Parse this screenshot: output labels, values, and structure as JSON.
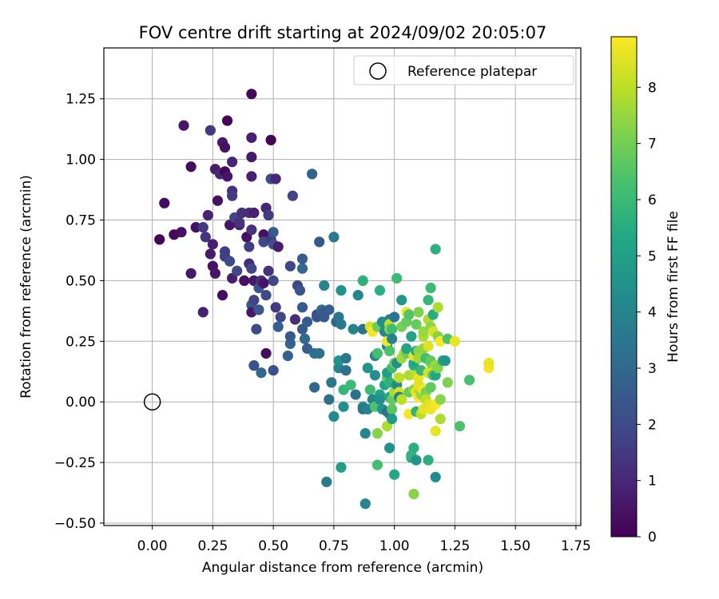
{
  "chart_data": {
    "type": "scatter",
    "title": "FOV centre drift starting at 2024/09/02 20:05:07",
    "xlabel": "Angular distance from reference (arcmin)",
    "ylabel": "Rotation from reference (arcmin)",
    "xlim": [
      -0.2,
      1.77
    ],
    "ylim": [
      -0.51,
      1.46
    ],
    "xticks": [
      0.0,
      0.25,
      0.5,
      0.75,
      1.0,
      1.25,
      1.5,
      1.75
    ],
    "xtick_labels": [
      "0.00",
      "0.25",
      "0.50",
      "0.75",
      "1.00",
      "1.25",
      "1.50",
      "1.75"
    ],
    "yticks": [
      -0.5,
      -0.25,
      0.0,
      0.25,
      0.5,
      0.75,
      1.0,
      1.25
    ],
    "ytick_labels": [
      "−0.50",
      "−0.25",
      "0.00",
      "0.25",
      "0.50",
      "0.75",
      "1.00",
      "1.25"
    ],
    "grid": true,
    "legend": {
      "position": "upper right",
      "entries": [
        "Reference platepar"
      ]
    },
    "reference_point": {
      "name": "Reference platepar",
      "x": 0.0,
      "y": 0.0
    },
    "colorbar": {
      "label": "Hours from first FF file",
      "colormap": "viridis",
      "range": [
        0,
        8.9
      ],
      "ticks": [
        0,
        1,
        2,
        3,
        4,
        5,
        6,
        7,
        8
      ]
    },
    "points": [
      [
        0.03,
        0.67,
        0.1
      ],
      [
        0.05,
        0.82,
        0.3
      ],
      [
        0.09,
        0.69,
        0.2
      ],
      [
        0.12,
        0.7,
        0.4
      ],
      [
        0.13,
        1.14,
        0.5
      ],
      [
        0.16,
        0.97,
        0.3
      ],
      [
        0.16,
        0.53,
        0.6
      ],
      [
        0.18,
        0.72,
        0.4
      ],
      [
        0.21,
        0.37,
        0.8
      ],
      [
        0.21,
        0.72,
        1.5
      ],
      [
        0.22,
        0.68,
        1.3
      ],
      [
        0.23,
        0.77,
        0.9
      ],
      [
        0.24,
        0.61,
        0.6
      ],
      [
        0.24,
        1.12,
        1.5
      ],
      [
        0.25,
        0.65,
        0.8
      ],
      [
        0.25,
        0.56,
        0.4
      ],
      [
        0.26,
        0.96,
        0.7
      ],
      [
        0.26,
        0.53,
        0.5
      ],
      [
        0.27,
        0.83,
        0.4
      ],
      [
        0.28,
        0.94,
        1.0
      ],
      [
        0.29,
        1.07,
        0.6
      ],
      [
        0.29,
        0.44,
        0.3
      ],
      [
        0.3,
        1.05,
        0.4
      ],
      [
        0.3,
        0.6,
        1.5
      ],
      [
        0.3,
        0.62,
        1.6
      ],
      [
        0.3,
        0.95,
        0.1
      ],
      [
        0.31,
        1.16,
        0.1
      ],
      [
        0.31,
        0.93,
        0.5
      ],
      [
        0.32,
        0.73,
        0.5
      ],
      [
        0.32,
        0.58,
        2.0
      ],
      [
        0.33,
        0.87,
        1.2
      ],
      [
        0.33,
        0.85,
        1.5
      ],
      [
        0.33,
        0.99,
        0.9
      ],
      [
        0.33,
        0.51,
        0.7
      ],
      [
        0.34,
        0.76,
        1.8
      ],
      [
        0.35,
        0.54,
        1.9
      ],
      [
        0.36,
        0.73,
        0.8
      ],
      [
        0.36,
        0.74,
        1.3
      ],
      [
        0.37,
        0.78,
        1.2
      ],
      [
        0.38,
        0.5,
        0.4
      ],
      [
        0.39,
        0.68,
        0.4
      ],
      [
        0.4,
        0.57,
        1.1
      ],
      [
        0.4,
        0.64,
        1.6
      ],
      [
        0.4,
        0.78,
        1.2
      ],
      [
        0.41,
        0.4,
        2.4
      ],
      [
        0.41,
        0.71,
        1.3
      ],
      [
        0.41,
        0.37,
        0.6
      ],
      [
        0.41,
        1.27,
        0.2
      ],
      [
        0.41,
        1.09,
        0.8
      ],
      [
        0.41,
        1.01,
        0.6
      ],
      [
        0.41,
        0.93,
        0.8
      ],
      [
        0.41,
        0.55,
        1.9
      ],
      [
        0.42,
        0.5,
        0.6
      ],
      [
        0.42,
        0.78,
        0.8
      ],
      [
        0.42,
        0.42,
        1.8
      ],
      [
        0.42,
        0.15,
        2.2
      ],
      [
        0.43,
        0.3,
        2.0
      ],
      [
        0.44,
        0.47,
        2.3
      ],
      [
        0.44,
        0.38,
        2.4
      ],
      [
        0.45,
        0.12,
        3.0
      ],
      [
        0.45,
        0.5,
        1.3
      ],
      [
        0.46,
        0.69,
        0.4
      ],
      [
        0.46,
        0.49,
        0.5
      ],
      [
        0.46,
        0.66,
        1.9
      ],
      [
        0.47,
        0.44,
        2.0
      ],
      [
        0.47,
        0.2,
        0.3
      ],
      [
        0.47,
        0.8,
        1.0
      ],
      [
        0.48,
        0.77,
        1.5
      ],
      [
        0.48,
        0.54,
        1.3
      ],
      [
        0.49,
        0.67,
        1.5
      ],
      [
        0.49,
        0.92,
        2.0
      ],
      [
        0.49,
        1.08,
        0.1
      ],
      [
        0.5,
        0.65,
        2.1
      ],
      [
        0.5,
        0.7,
        2.5
      ],
      [
        0.5,
        0.13,
        2.2
      ],
      [
        0.5,
        0.5,
        1.9
      ],
      [
        0.51,
        0.39,
        1.5
      ],
      [
        0.51,
        0.92,
        1.0
      ],
      [
        0.52,
        0.64,
        0.7
      ],
      [
        0.52,
        0.31,
        2.7
      ],
      [
        0.53,
        0.35,
        1.9
      ],
      [
        0.56,
        0.19,
        2.7
      ],
      [
        0.57,
        0.56,
        1.9
      ],
      [
        0.57,
        0.24,
        2.9
      ],
      [
        0.57,
        0.27,
        2.5
      ],
      [
        0.58,
        0.85,
        1.8
      ],
      [
        0.59,
        0.34,
        1.1
      ],
      [
        0.6,
        0.48,
        1.8
      ],
      [
        0.61,
        0.46,
        2.3
      ],
      [
        0.62,
        0.3,
        2.5
      ],
      [
        0.62,
        0.55,
        3.0
      ],
      [
        0.62,
        0.39,
        2.5
      ],
      [
        0.62,
        0.59,
        2.6
      ],
      [
        0.63,
        0.26,
        3.0
      ],
      [
        0.64,
        0.22,
        2.7
      ],
      [
        0.64,
        0.33,
        2.6
      ],
      [
        0.66,
        0.94,
        2.8
      ],
      [
        0.67,
        0.06,
        3.0
      ],
      [
        0.67,
        0.2,
        3.2
      ],
      [
        0.68,
        0.36,
        2.0
      ],
      [
        0.68,
        0.35,
        2.3
      ],
      [
        0.69,
        0.66,
        2.5
      ],
      [
        0.69,
        0.2,
        3.3
      ],
      [
        0.7,
        0.38,
        3.2
      ],
      [
        0.71,
        0.37,
        2.4
      ],
      [
        0.71,
        0.35,
        2.5
      ],
      [
        0.71,
        0.48,
        4.0
      ],
      [
        0.72,
        -0.33,
        3.6
      ],
      [
        0.73,
        0.01,
        3.3
      ],
      [
        0.73,
        0.38,
        2.6
      ],
      [
        0.74,
        0.08,
        3.5
      ],
      [
        0.75,
        -0.06,
        4.2
      ],
      [
        0.75,
        0.68,
        3.6
      ],
      [
        0.76,
        0.33,
        2.9
      ],
      [
        0.77,
        0.14,
        4.0
      ],
      [
        0.77,
        0.17,
        4.6
      ],
      [
        0.77,
        0.35,
        3.5
      ],
      [
        0.78,
        0.46,
        4.5
      ],
      [
        0.78,
        0.32,
        3.6
      ],
      [
        0.78,
        -0.27,
        4.9
      ],
      [
        0.79,
        -0.02,
        4.4
      ],
      [
        0.79,
        0.05,
        5.9
      ],
      [
        0.8,
        0.13,
        3.3
      ],
      [
        0.8,
        0.18,
        3.5
      ],
      [
        0.82,
        0.07,
        6.0
      ],
      [
        0.83,
        0.3,
        4.0
      ],
      [
        0.84,
        0.03,
        3.3
      ],
      [
        0.85,
        0.44,
        4.1
      ],
      [
        0.87,
        0.3,
        3.3
      ],
      [
        0.87,
        -0.02,
        4.3
      ],
      [
        0.87,
        -0.03,
        3.5
      ],
      [
        0.87,
        0.5,
        5.7
      ],
      [
        0.88,
        -0.42,
        4.0
      ],
      [
        0.88,
        -0.13,
        4.1
      ],
      [
        0.89,
        0.14,
        4.7
      ],
      [
        0.89,
        -0.03,
        3.9
      ],
      [
        0.9,
        0.05,
        6.0
      ],
      [
        0.9,
        0.31,
        8.3
      ],
      [
        0.91,
        0.29,
        8.8
      ],
      [
        0.91,
        0.01,
        4.0
      ],
      [
        0.92,
        -0.02,
        6.4
      ],
      [
        0.92,
        0.19,
        4.0
      ],
      [
        0.92,
        0.11,
        4.4
      ],
      [
        0.93,
        0.31,
        6.9
      ],
      [
        0.93,
        -0.26,
        6.2
      ],
      [
        0.93,
        -0.13,
        7.3
      ],
      [
        0.93,
        0.2,
        6.2
      ],
      [
        0.94,
        0.46,
        5.6
      ],
      [
        0.94,
        0.03,
        5.1
      ],
      [
        0.94,
        0.01,
        4.4
      ],
      [
        0.95,
        -0.03,
        4.6
      ],
      [
        0.95,
        0.33,
        4.2
      ],
      [
        0.96,
        0.07,
        5.2
      ],
      [
        0.96,
        0.29,
        4.1
      ],
      [
        0.96,
        0.32,
        4.5
      ],
      [
        0.97,
        0.23,
        4.1
      ],
      [
        0.97,
        0.1,
        6.7
      ],
      [
        0.97,
        -0.1,
        7.8
      ],
      [
        0.97,
        0.25,
        8.7
      ],
      [
        0.97,
        0.12,
        4.9
      ],
      [
        0.97,
        -0.04,
        3.3
      ],
      [
        0.98,
        -0.05,
        3.5
      ],
      [
        0.98,
        0.02,
        5.3
      ],
      [
        0.98,
        0.34,
        4.1
      ],
      [
        0.98,
        0.21,
        6.4
      ],
      [
        0.98,
        0.08,
        5.7
      ],
      [
        0.98,
        0.32,
        8.1
      ],
      [
        0.98,
        0.3,
        7.3
      ],
      [
        0.98,
        -0.19,
        4.5
      ],
      [
        0.99,
        0.14,
        6.0
      ],
      [
        0.99,
        -0.03,
        6.6
      ],
      [
        0.99,
        -0.07,
        4.8
      ],
      [
        0.99,
        0.3,
        6.1
      ],
      [
        0.99,
        0.26,
        3.9
      ],
      [
        0.99,
        0.01,
        6.7
      ],
      [
        1.0,
        -0.3,
        5.3
      ],
      [
        1.0,
        0.35,
        3.5
      ],
      [
        1.0,
        0.16,
        6.9
      ],
      [
        1.0,
        0.04,
        4.5
      ],
      [
        1.0,
        0.04,
        7.7
      ],
      [
        1.01,
        0.07,
        4.3
      ],
      [
        1.01,
        0.16,
        4.4
      ],
      [
        1.01,
        0.51,
        6.0
      ],
      [
        1.02,
        0.04,
        8.4
      ],
      [
        1.02,
        0.02,
        3.6
      ],
      [
        1.02,
        0.1,
        8.0
      ],
      [
        1.03,
        0.42,
        4.7
      ],
      [
        1.03,
        0.18,
        7.6
      ],
      [
        1.03,
        0.31,
        7.0
      ],
      [
        1.03,
        0.01,
        8.0
      ],
      [
        1.04,
        0.2,
        7.7
      ],
      [
        1.05,
        0.2,
        6.9
      ],
      [
        1.05,
        0.22,
        5.2
      ],
      [
        1.05,
        0.37,
        8.7
      ],
      [
        1.05,
        0.33,
        6.8
      ],
      [
        1.06,
        -0.05,
        8.8
      ],
      [
        1.06,
        0.11,
        7.8
      ],
      [
        1.06,
        0.36,
        6.5
      ],
      [
        1.06,
        0.04,
        6.8
      ],
      [
        1.07,
        -0.23,
        5.5
      ],
      [
        1.07,
        -0.22,
        5.8
      ],
      [
        1.07,
        0.27,
        5.1
      ],
      [
        1.08,
        -0.19,
        5.6
      ],
      [
        1.08,
        0.15,
        5.8
      ],
      [
        1.08,
        0.05,
        7.4
      ],
      [
        1.08,
        -0.38,
        7.3
      ],
      [
        1.08,
        0.16,
        5.3
      ],
      [
        1.08,
        0.19,
        8.6
      ],
      [
        1.09,
        0.21,
        5.1
      ],
      [
        1.09,
        0.11,
        8.0
      ],
      [
        1.09,
        0.04,
        8.8
      ],
      [
        1.09,
        0.32,
        6.8
      ],
      [
        1.09,
        -0.04,
        5.7
      ],
      [
        1.09,
        -0.24,
        4.6
      ],
      [
        1.1,
        0.21,
        7.3
      ],
      [
        1.1,
        0.1,
        8.6
      ],
      [
        1.1,
        0.04,
        7.9
      ],
      [
        1.1,
        0.02,
        8.9
      ],
      [
        1.1,
        0.18,
        7.6
      ],
      [
        1.1,
        0.37,
        7.2
      ],
      [
        1.1,
        0.07,
        8.5
      ],
      [
        1.11,
        0.03,
        7.5
      ],
      [
        1.11,
        0.06,
        8.5
      ],
      [
        1.11,
        -0.05,
        8.0
      ],
      [
        1.11,
        0.13,
        5.9
      ],
      [
        1.12,
        0.22,
        7.4
      ],
      [
        1.12,
        0.27,
        7.8
      ],
      [
        1.12,
        0.29,
        7.5
      ],
      [
        1.12,
        0.05,
        8.8
      ],
      [
        1.12,
        -0.03,
        8.6
      ],
      [
        1.13,
        0.04,
        7.1
      ],
      [
        1.13,
        0.01,
        8.0
      ],
      [
        1.13,
        0.18,
        6.2
      ],
      [
        1.14,
        0.12,
        8.3
      ],
      [
        1.14,
        -0.24,
        5.6
      ],
      [
        1.14,
        0.42,
        5.9
      ],
      [
        1.14,
        0.34,
        7.8
      ],
      [
        1.14,
        -0.01,
        8.5
      ],
      [
        1.14,
        0.23,
        8.5
      ],
      [
        1.15,
        -0.03,
        8.7
      ],
      [
        1.15,
        0.47,
        6.0
      ],
      [
        1.15,
        0.16,
        7.4
      ],
      [
        1.15,
        0.17,
        6.7
      ],
      [
        1.15,
        0.06,
        6.7
      ],
      [
        1.15,
        0.31,
        7.4
      ],
      [
        1.16,
        0.36,
        5.5
      ],
      [
        1.16,
        0.11,
        6.4
      ],
      [
        1.16,
        0.29,
        8.3
      ],
      [
        1.17,
        0.63,
        5.6
      ],
      [
        1.17,
        0.11,
        5.3
      ],
      [
        1.17,
        -0.31,
        4.3
      ],
      [
        1.17,
        -0.12,
        8.6
      ],
      [
        1.17,
        0.15,
        7.6
      ],
      [
        1.17,
        -0.01,
        8.8
      ],
      [
        1.18,
        0.14,
        7.3
      ],
      [
        1.18,
        0.27,
        7.3
      ],
      [
        1.18,
        0.39,
        7.8
      ],
      [
        1.19,
        -0.07,
        7.8
      ],
      [
        1.19,
        0.01,
        7.3
      ],
      [
        1.19,
        0.25,
        8.9
      ],
      [
        1.2,
        0.17,
        5.4
      ],
      [
        1.21,
        0.17,
        4.6
      ],
      [
        1.22,
        0.26,
        6.4
      ],
      [
        1.22,
        0.08,
        7.2
      ],
      [
        1.25,
        0.25,
        8.6
      ],
      [
        1.27,
        -0.1,
        6.4
      ],
      [
        1.31,
        0.09,
        6.3
      ],
      [
        1.39,
        0.14,
        8.8
      ],
      [
        1.39,
        0.16,
        8.6
      ]
    ]
  }
}
